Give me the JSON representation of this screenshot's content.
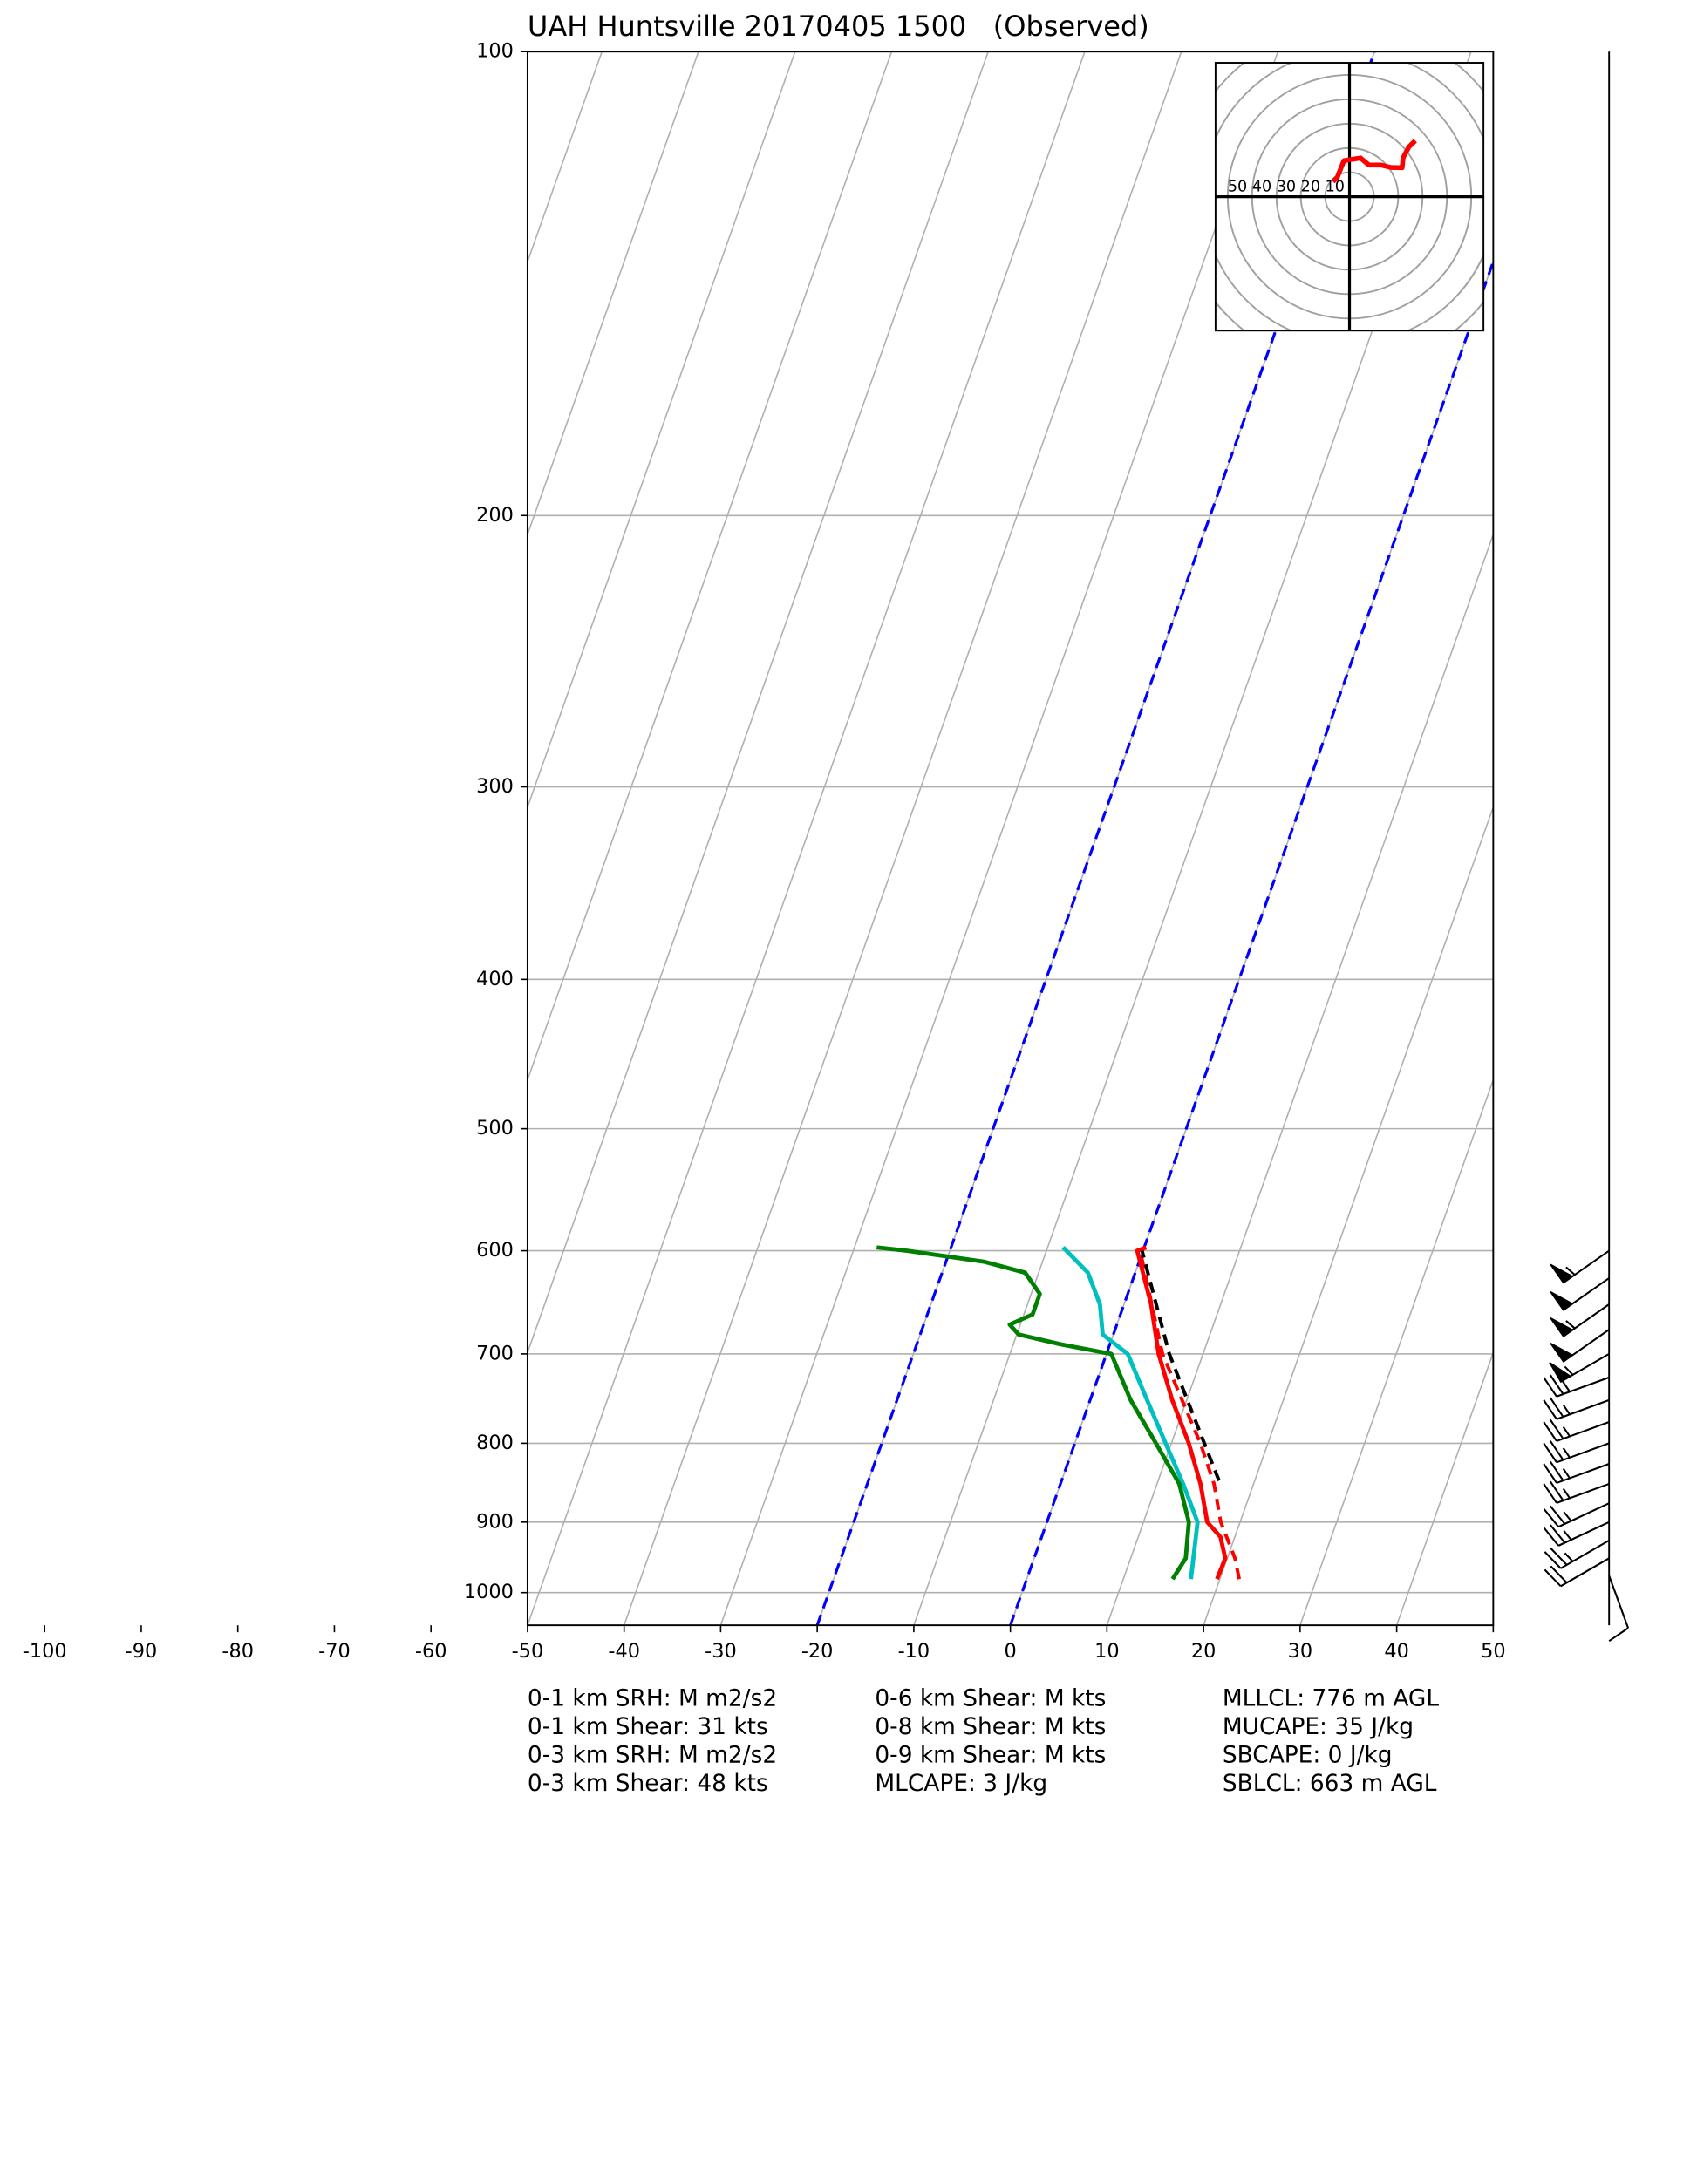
{
  "chart_data": [
    {
      "type": "skewt",
      "title": "UAH Huntsville 20170405 1500   (Observed)",
      "xlim": [
        -50,
        50
      ],
      "ylim": [
        1050,
        100
      ],
      "log_scale": true,
      "grid": true,
      "xticks": [
        -100,
        -90,
        -80,
        -70,
        -60,
        -50,
        -40,
        -30,
        -20,
        -10,
        0,
        10,
        20,
        30,
        40,
        50
      ],
      "yticks": [
        100,
        200,
        300,
        400,
        500,
        600,
        700,
        800,
        900,
        1000
      ],
      "highlight_isotherms": [
        -20,
        0
      ],
      "highlight_color": "#0000ff",
      "series": [
        {
          "color": "#ff0000",
          "dashed": false,
          "pressure": [
            980,
            950,
            920,
            900,
            850,
            800,
            750,
            700,
            650,
            600,
            597
          ],
          "values": [
            19.7,
            19.8,
            18.5,
            16.6,
            14.5,
            11.8,
            8.5,
            5.4,
            2.8,
            -0.6,
            0.2
          ]
        },
        {
          "color": "#ff0000",
          "dashed": true,
          "pressure": [
            980,
            950,
            900,
            850,
            800,
            700,
            600
          ],
          "values": [
            22,
            20.8,
            18,
            15.9,
            13,
            5.8,
            -0.3
          ]
        },
        {
          "color": "#00bfbf",
          "dashed": false,
          "pressure": [
            980,
            900,
            850,
            800,
            750,
            700,
            680,
            650,
            620,
            597
          ],
          "values": [
            17,
            15.6,
            12.7,
            9.4,
            5.9,
            2.2,
            -1.1,
            -2.5,
            -4.9,
            -8.4
          ]
        },
        {
          "color": "#008000",
          "dashed": false,
          "pressure": [
            980,
            950,
            900,
            850,
            800,
            750,
            700,
            690,
            680,
            670,
            660,
            640,
            620,
            610,
            600,
            597
          ],
          "values": [
            15.1,
            15.7,
            14.7,
            12.3,
            8.4,
            4.2,
            0.5,
            -5.1,
            -9.8,
            -11.1,
            -9.1,
            -9.1,
            -11.4,
            -16,
            -24.4,
            -27.7
          ]
        },
        {
          "color": "#000000",
          "dashed": true,
          "pressure": [
            846,
            700,
            600
          ],
          "values": [
            16.3,
            6.5,
            -0.1
          ]
        }
      ],
      "wind": {
        "pressure": [
          975,
          950,
          925,
          900,
          875,
          850,
          825,
          800,
          775,
          750,
          725,
          700,
          675,
          650,
          625,
          600
        ],
        "speed": [
          10,
          20,
          25,
          25,
          25,
          25,
          25,
          25,
          25,
          25,
          30,
          55,
          50,
          55,
          50,
          55
        ],
        "direction": [
          160,
          240,
          240,
          245,
          245,
          250,
          250,
          250,
          250,
          250,
          250,
          240,
          235,
          235,
          235,
          235
        ]
      },
      "annotations": [
        [
          "0-1 km SRH: M m2/s2",
          "0-1 km Shear: 31 kts",
          "0-3 km SRH: M m2/s2",
          "0-3 km Shear: 48 kts"
        ],
        [
          "0-6 km Shear: M kts",
          "0-8 km Shear: M kts",
          "0-9 km Shear: M kts",
          "MLCAPE: 3 J/kg"
        ],
        [
          "MLLCL: 776 m AGL",
          "MUCAPE: 35 J/kg",
          "SBCAPE: 0 J/kg",
          "SBLCL: 663 m AGL"
        ]
      ]
    },
    {
      "type": "hodograph",
      "xlim": [
        -55,
        55
      ],
      "ylim": [
        -55,
        55
      ],
      "rings": [
        10,
        20,
        30,
        40,
        50,
        60,
        70
      ],
      "color": "#ff0000",
      "u": [
        -6.8,
        -5,
        -2.3,
        4.5,
        8,
        13,
        17,
        21.6,
        22,
        24.4,
        27
      ],
      "v": [
        6.2,
        8,
        14.8,
        15.9,
        13,
        13,
        12,
        11.9,
        16,
        20.5,
        23
      ]
    }
  ]
}
